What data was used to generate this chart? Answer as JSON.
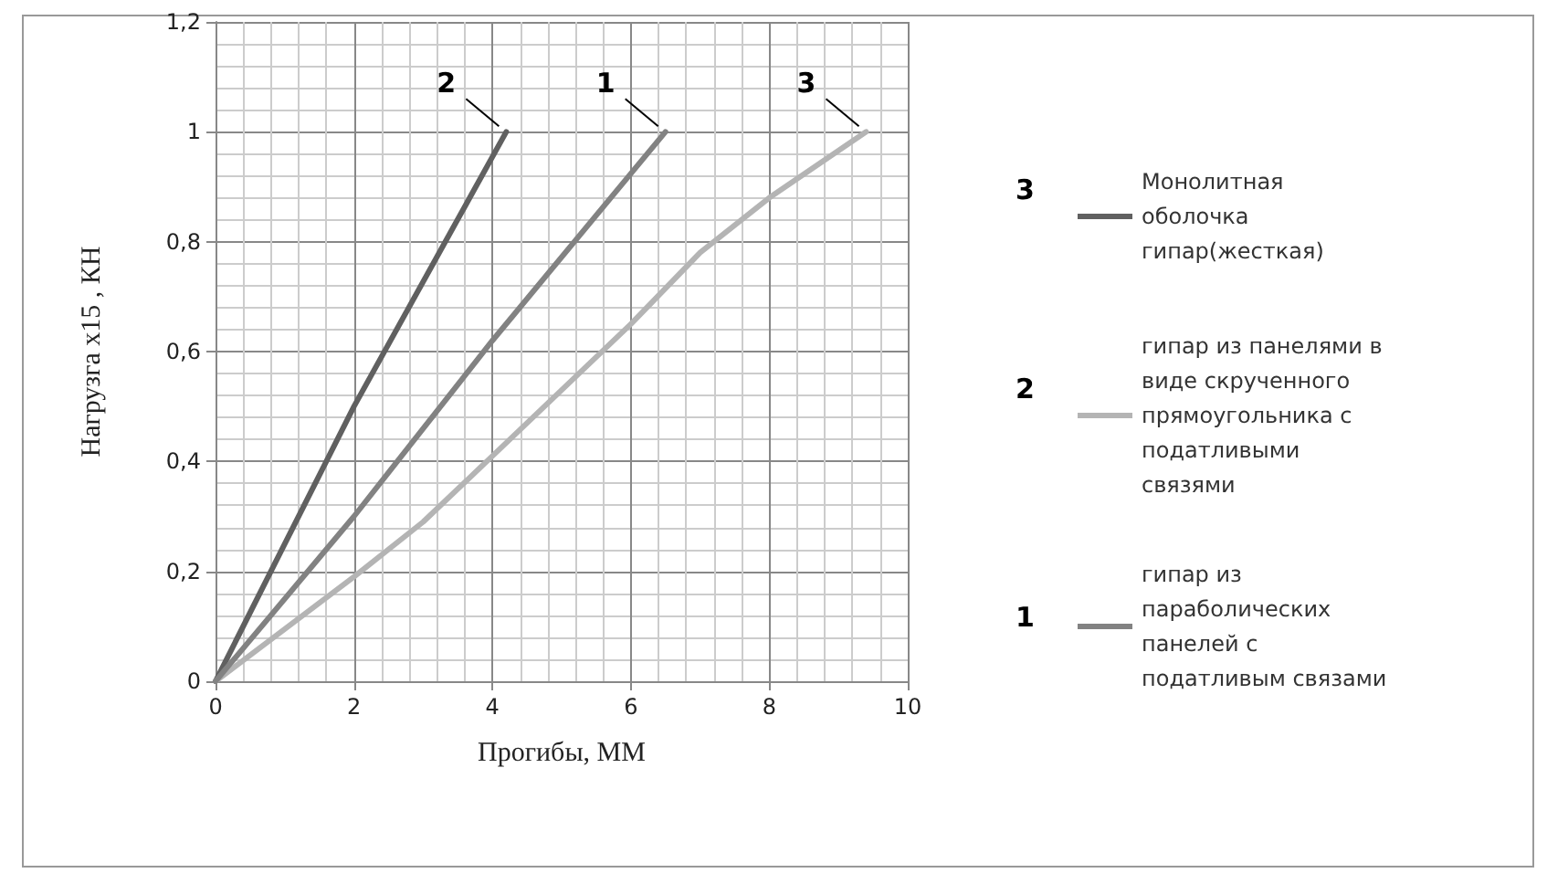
{
  "chart_data": {
    "type": "line",
    "xlabel": "Прогибы, ММ",
    "ylabel": "Нагрузга х15 , КН",
    "series": [
      {
        "name": "Монолитная оболочка гипар(жесткая)",
        "color": "#606060",
        "x": [
          0,
          2,
          4.2
        ],
        "values": [
          0,
          0.5,
          1
        ]
      },
      {
        "name": "гипар из панелями в виде скрученного прямоугольника с податливыми связями",
        "color": "#b4b4b4",
        "x": [
          0,
          2,
          3,
          4,
          5,
          6,
          7,
          8,
          9.4
        ],
        "values": [
          0,
          0.19,
          0.29,
          0.41,
          0.53,
          0.65,
          0.78,
          0.88,
          1
        ]
      },
      {
        "name": "гипар из параболических панелей с податливым связами",
        "color": "#828282",
        "x": [
          0,
          2,
          4,
          6.5
        ],
        "values": [
          0,
          0.3,
          0.62,
          1
        ]
      }
    ],
    "xlim": [
      0,
      10
    ],
    "xticks": [
      0,
      2,
      4,
      6,
      8,
      10
    ],
    "ylim": [
      0,
      1.2
    ],
    "yticks": [
      0,
      {
        "value": 0.2,
        "label": "0,2"
      },
      {
        "value": 0.4,
        "label": "0,4"
      },
      {
        "value": 0.6,
        "label": "0,6"
      },
      {
        "value": 0.8,
        "label": "0,8"
      },
      1,
      {
        "value": 1.2,
        "label": "1,2"
      }
    ],
    "grid": true,
    "legend": "right",
    "marker": "none",
    "line_style": "solid",
    "annotations": [
      {
        "text": "2",
        "x": 4.2,
        "y": 1
      },
      {
        "text": "1",
        "x": 6.5,
        "y": 1
      },
      {
        "text": "3",
        "x": 9.4,
        "y": 1
      },
      "3",
      "2",
      "1"
    ]
  }
}
